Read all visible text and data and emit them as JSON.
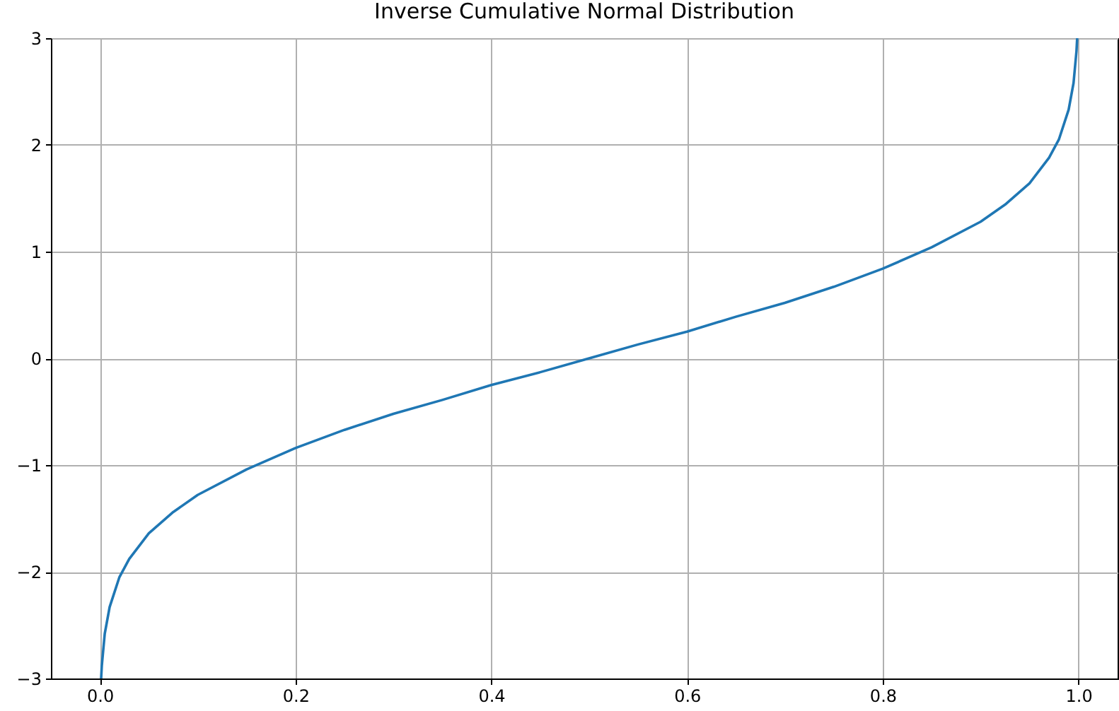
{
  "chart_data": {
    "type": "line",
    "title": "Inverse Cumulative Normal Distribution",
    "x": [
      0.0013,
      0.002,
      0.005,
      0.01,
      0.02,
      0.03,
      0.05,
      0.075,
      0.1,
      0.15,
      0.2,
      0.25,
      0.3,
      0.35,
      0.4,
      0.45,
      0.5,
      0.55,
      0.6,
      0.65,
      0.7,
      0.75,
      0.8,
      0.85,
      0.9,
      0.925,
      0.95,
      0.97,
      0.98,
      0.99,
      0.995,
      0.998,
      0.9987
    ],
    "series": [
      {
        "color": "#1f77b4",
        "values": [
          -3.0,
          -2.88,
          -2.58,
          -2.33,
          -2.05,
          -1.88,
          -1.64,
          -1.44,
          -1.28,
          -1.04,
          -0.84,
          -0.67,
          -0.52,
          -0.39,
          -0.25,
          -0.13,
          0.0,
          0.13,
          0.25,
          0.39,
          0.52,
          0.67,
          0.84,
          1.04,
          1.28,
          1.44,
          1.64,
          1.88,
          2.05,
          2.33,
          2.58,
          2.88,
          3.0
        ]
      }
    ],
    "xlim": [
      -0.05,
      1.04
    ],
    "ylim": [
      -3,
      3
    ],
    "xticks": [
      {
        "value": 0,
        "label": "0.0"
      },
      {
        "value": 0.2,
        "label": "0.2"
      },
      {
        "value": 0.4,
        "label": "0.4"
      },
      {
        "value": 0.6,
        "label": "0.6"
      },
      {
        "value": 0.8,
        "label": "0.8"
      },
      {
        "value": 1,
        "label": "1.0"
      }
    ],
    "yticks": [
      {
        "value": -3,
        "label": "−3"
      },
      {
        "value": -2,
        "label": "−2"
      },
      {
        "value": -1,
        "label": "−1"
      },
      {
        "value": 0,
        "label": "0"
      },
      {
        "value": 1,
        "label": "1"
      },
      {
        "value": 2,
        "label": "2"
      },
      {
        "value": 3,
        "label": "3"
      }
    ],
    "grid": true,
    "line_style": "solid"
  }
}
